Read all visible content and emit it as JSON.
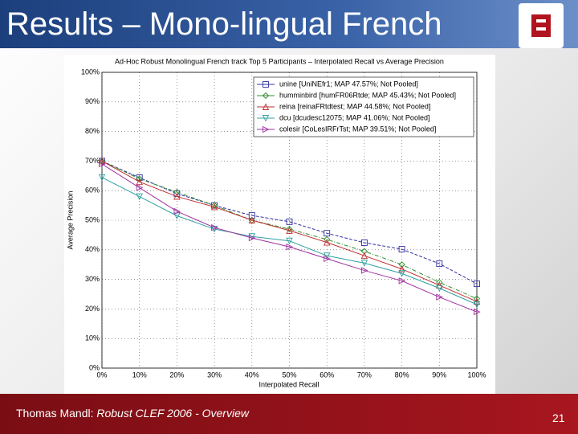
{
  "slide": {
    "title": "Results – Mono-lingual French",
    "footer_author": "Thomas Mandl: ",
    "footer_title": "Robust CLEF 2006 - Overview",
    "page": "21"
  },
  "chart_data": {
    "type": "line",
    "title": "Ad-Hoc Robust Monolingual French track Top 5 Participants – Interpolated Recall vs Average Precision",
    "xlabel": "Interpolated Recall",
    "ylabel": "Average Precision",
    "x": [
      0,
      10,
      20,
      30,
      40,
      50,
      60,
      70,
      80,
      90,
      100
    ],
    "xlim": [
      0,
      100
    ],
    "ylim": [
      0,
      100
    ],
    "xticks": [
      {
        "value": 0,
        "label": "0%"
      },
      {
        "value": 10,
        "label": "10%"
      },
      {
        "value": 20,
        "label": "20%"
      },
      {
        "value": 30,
        "label": "30%"
      },
      {
        "value": 40,
        "label": "40%"
      },
      {
        "value": 50,
        "label": "50%"
      },
      {
        "value": 60,
        "label": "60%"
      },
      {
        "value": 70,
        "label": "70%"
      },
      {
        "value": 80,
        "label": "80%"
      },
      {
        "value": 90,
        "label": "90%"
      },
      {
        "value": 100,
        "label": "100%"
      }
    ],
    "yticks": [
      {
        "value": 0,
        "label": "0%"
      },
      {
        "value": 10,
        "label": "10%"
      },
      {
        "value": 20,
        "label": "20%"
      },
      {
        "value": 30,
        "label": "30%"
      },
      {
        "value": 40,
        "label": "40%"
      },
      {
        "value": 50,
        "label": "50%"
      },
      {
        "value": 60,
        "label": "60%"
      },
      {
        "value": 70,
        "label": "70%"
      },
      {
        "value": 80,
        "label": "80%"
      },
      {
        "value": 90,
        "label": "90%"
      },
      {
        "value": 100,
        "label": "100%"
      }
    ],
    "grid": true,
    "legend": "upper right",
    "series": [
      {
        "name": "unine [UniNEfr1; MAP 47.57%; Not Pooled]",
        "color": "#3030a0",
        "marker": "square",
        "values": [
          70,
          64.4,
          59,
          55,
          51.6,
          49.5,
          45.6,
          42.4,
          40.2,
          35.3,
          28.5
        ]
      },
      {
        "name": "humminbird [humFR06Rtde; MAP 45.43%; Not Pooled]",
        "color": "#309030",
        "marker": "diamond",
        "values": [
          70,
          64,
          59.5,
          55,
          50,
          47,
          43.5,
          39.5,
          35,
          29,
          23.5
        ]
      },
      {
        "name": "reina [reinaFRtdtest; MAP 44.58%; Not Pooled]",
        "color": "#c03030",
        "marker": "triangle-up",
        "values": [
          70,
          63,
          58,
          54.5,
          50,
          46.5,
          42.5,
          38,
          33.5,
          28,
          22.5
        ]
      },
      {
        "name": "dcu [dcudesc12075; MAP 41.06%; Not Pooled]",
        "color": "#30a0a0",
        "marker": "triangle-down",
        "values": [
          64.5,
          58,
          51.5,
          47,
          44.5,
          43,
          38,
          35.5,
          32,
          27,
          21.5
        ]
      },
      {
        "name": "colesir [CoLesIRFrTst; MAP 39.51%; Not Pooled]",
        "color": "#a030a0",
        "marker": "triangle-right",
        "values": [
          69,
          61,
          53,
          47.5,
          44,
          41,
          37,
          33,
          29.5,
          24,
          19
        ]
      }
    ]
  }
}
